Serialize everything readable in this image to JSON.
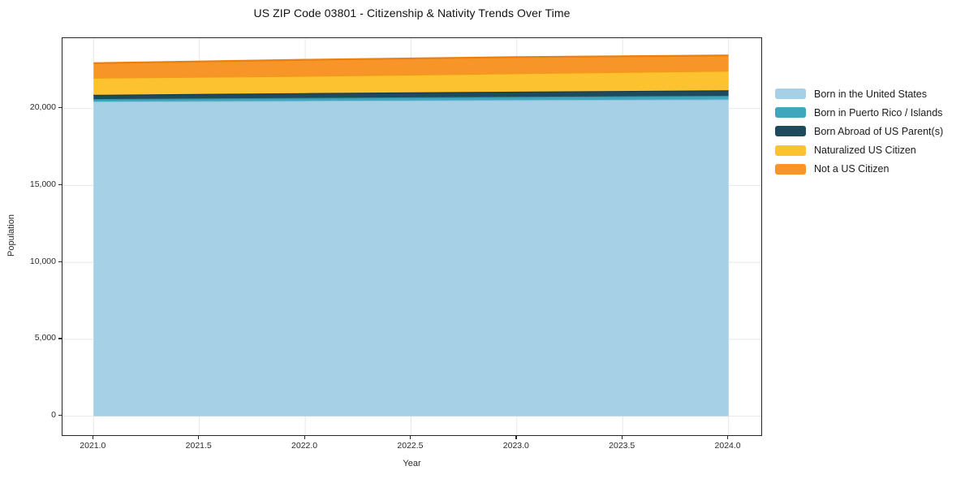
{
  "chart_data": {
    "type": "area",
    "stacked": true,
    "title": "US ZIP Code 03801 - Citizenship & Nativity Trends Over Time",
    "xlabel": "Year",
    "ylabel": "Population",
    "x": [
      2021,
      2022,
      2023,
      2024
    ],
    "series": [
      {
        "name": "Born in the United States",
        "values": [
          20450,
          20500,
          20550,
          20590
        ],
        "color": "#A6D0E6",
        "edge": "#8FC2DC"
      },
      {
        "name": "Born in Puerto Rico / Islands",
        "values": [
          160,
          190,
          215,
          240
        ],
        "color": "#3FA6BB",
        "edge": "#2F91A6"
      },
      {
        "name": "Born Abroad of US Parent(s)",
        "values": [
          280,
          310,
          330,
          355
        ],
        "color": "#1F4A5C",
        "edge": "#153949"
      },
      {
        "name": "Naturalized US Citizen",
        "values": [
          1110,
          1120,
          1195,
          1265
        ],
        "color": "#FCC22F",
        "edge": "#F39C12"
      },
      {
        "name": "Not a US Citizen",
        "values": [
          950,
          1050,
          1055,
          1000
        ],
        "color": "#F79528",
        "edge": "#E87F10"
      }
    ],
    "xlim": [
      2020.853,
      2024.155
    ],
    "ylim": [
      -1235,
      24573
    ],
    "xticks": [
      2021.0,
      2021.5,
      2022.0,
      2022.5,
      2023.0,
      2023.5,
      2024.0
    ],
    "xtick_labels": [
      "2021.0",
      "2021.5",
      "2022.0",
      "2022.5",
      "2023.0",
      "2023.5",
      "2024.0"
    ],
    "yticks": [
      0,
      5000,
      10000,
      15000,
      20000
    ],
    "ytick_labels": [
      "0",
      "5,000",
      "10,000",
      "15,000",
      "20,000"
    ],
    "grid": true,
    "grid_color": "#e7e7e7",
    "background": "#ffffff",
    "frame_color": "#262626",
    "legend_position": "right"
  }
}
